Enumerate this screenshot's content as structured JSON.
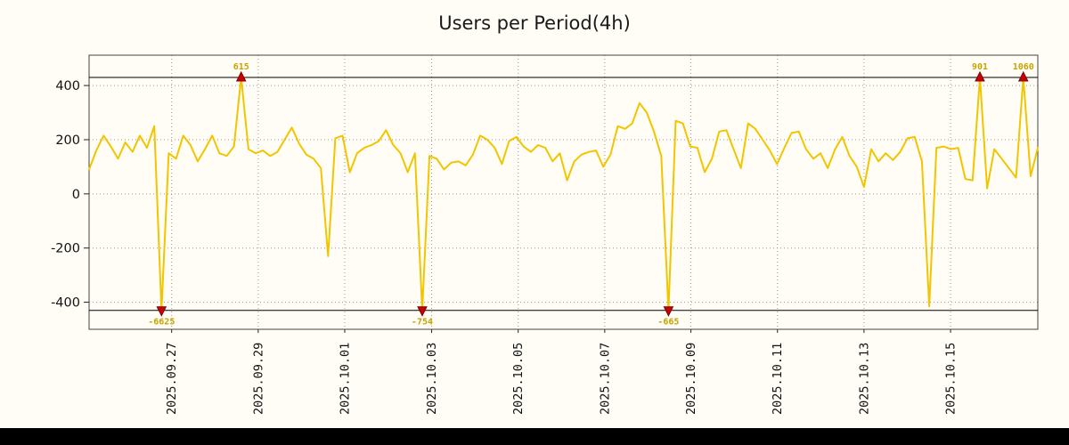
{
  "chart_data": {
    "type": "line",
    "title": "Users per Period(4h)",
    "series_name": "users",
    "line_color": "#F2C500",
    "marker_color": "#CC0000",
    "marker_edge_color": "#7A0000",
    "annotation_color": "#C9A100",
    "grid_color": "#999999",
    "y_ticks": [
      400,
      200,
      0,
      -200,
      -400
    ],
    "ylim": [
      -500,
      512
    ],
    "clip_value": 430,
    "x_ticks": [
      {
        "label": "2025.09.27",
        "index": 11.4
      },
      {
        "label": "2025.09.29",
        "index": 23.35
      },
      {
        "label": "2025.10.01",
        "index": 35.3
      },
      {
        "label": "2025.10.03",
        "index": 47.3
      },
      {
        "label": "2025.10.05",
        "index": 59.25
      },
      {
        "label": "2025.10.07",
        "index": 71.2
      },
      {
        "label": "2025.10.09",
        "index": 83.1
      },
      {
        "label": "2025.10.11",
        "index": 95.05
      },
      {
        "label": "2025.10.13",
        "index": 107.0
      },
      {
        "label": "2025.10.15",
        "index": 118.95
      }
    ],
    "values": [
      90,
      160,
      215,
      175,
      130,
      190,
      155,
      215,
      170,
      250,
      -6625,
      150,
      130,
      215,
      180,
      120,
      165,
      215,
      150,
      140,
      175,
      615,
      165,
      150,
      160,
      140,
      155,
      200,
      245,
      185,
      145,
      130,
      95,
      -230,
      205,
      215,
      80,
      150,
      170,
      180,
      195,
      235,
      180,
      150,
      80,
      150,
      -754,
      140,
      130,
      90,
      115,
      120,
      105,
      145,
      215,
      200,
      170,
      110,
      195,
      210,
      175,
      155,
      180,
      170,
      120,
      150,
      50,
      120,
      145,
      155,
      160,
      100,
      145,
      250,
      240,
      260,
      335,
      300,
      230,
      140,
      -665,
      270,
      260,
      175,
      170,
      80,
      130,
      230,
      235,
      165,
      95,
      260,
      240,
      200,
      160,
      110,
      170,
      225,
      230,
      165,
      130,
      150,
      95,
      165,
      210,
      140,
      100,
      25,
      165,
      120,
      150,
      125,
      155,
      205,
      210,
      120,
      -415,
      170,
      175,
      165,
      170,
      55,
      50,
      901,
      20,
      165,
      130,
      95,
      60,
      1060,
      65,
      170
    ],
    "annotations": [
      {
        "index": 10,
        "label": "-6625",
        "position": "bottom"
      },
      {
        "index": 21,
        "label": "615",
        "position": "top"
      },
      {
        "index": 46,
        "label": "-754",
        "position": "bottom"
      },
      {
        "index": 80,
        "label": "-665",
        "position": "bottom"
      },
      {
        "index": 123,
        "label": "901",
        "position": "top"
      },
      {
        "index": 129,
        "label": "1060",
        "position": "top"
      }
    ]
  }
}
